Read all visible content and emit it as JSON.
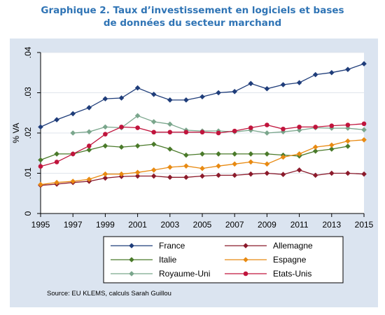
{
  "figure": {
    "title_line1": "Graphique 2. Taux d’investissement en logiciels et bases",
    "title_line2": "de données du secteur marchand",
    "source": "Source: EU KLEMS, calculs Sarah Guillou"
  },
  "chart_data": {
    "type": "line",
    "ylabel": "% VA",
    "xlabel": "",
    "xlim": [
      1995,
      2015
    ],
    "ylim": [
      0,
      0.04
    ],
    "x_ticks": [
      "1995",
      "1997",
      "1999",
      "2001",
      "2003",
      "2005",
      "2007",
      "2009",
      "2011",
      "2013",
      "2015"
    ],
    "y_ticks": [
      "0",
      ".01",
      ".02",
      ".03",
      ".04"
    ],
    "grid": true,
    "legend_position": "bottom",
    "x": [
      1995,
      1996,
      1997,
      1998,
      1999,
      2000,
      2001,
      2002,
      2003,
      2004,
      2005,
      2006,
      2007,
      2008,
      2009,
      2010,
      2011,
      2012,
      2013,
      2014,
      2015
    ],
    "series": [
      {
        "name": "France",
        "color": "#1f3d7a",
        "marker": "diamond",
        "values": [
          0.0215,
          0.0233,
          0.0248,
          0.0263,
          0.0285,
          0.0287,
          0.0312,
          0.0296,
          0.0282,
          0.0282,
          0.029,
          0.03,
          0.0303,
          0.0323,
          0.031,
          0.032,
          0.0325,
          0.0345,
          0.035,
          0.0358,
          0.0372
        ]
      },
      {
        "name": "Allemagne",
        "color": "#8b1a2b",
        "marker": "diamond",
        "values": [
          0.007,
          0.0073,
          0.0077,
          0.008,
          0.0088,
          0.0092,
          0.0093,
          0.0093,
          0.009,
          0.009,
          0.0093,
          0.0095,
          0.0095,
          0.0098,
          0.01,
          0.0097,
          0.0108,
          0.0095,
          0.01,
          0.01,
          0.0098
        ]
      },
      {
        "name": "Italie",
        "color": "#4a7a2a",
        "marker": "diamond",
        "values": [
          0.0133,
          0.0148,
          0.0148,
          0.0158,
          0.0168,
          0.0165,
          0.0168,
          0.0172,
          0.016,
          0.0145,
          0.0148,
          0.0148,
          0.0148,
          0.0148,
          0.0148,
          0.0145,
          0.0143,
          0.0155,
          0.016,
          0.0167,
          null
        ]
      },
      {
        "name": "Espagne",
        "color": "#e88a12",
        "marker": "diamond",
        "values": [
          0.0072,
          0.0077,
          0.008,
          0.0085,
          0.0098,
          0.0098,
          0.0102,
          0.0108,
          0.0115,
          0.0118,
          0.0112,
          0.0118,
          0.0123,
          0.0128,
          0.0123,
          0.014,
          0.0148,
          0.0165,
          0.017,
          0.018,
          0.0183
        ]
      },
      {
        "name": "Royaume-Uni",
        "color": "#7aa68c",
        "marker": "diamond",
        "values": [
          null,
          null,
          0.02,
          0.0203,
          0.0215,
          0.0213,
          0.0243,
          0.0228,
          0.0222,
          0.0207,
          0.0205,
          0.0205,
          0.0203,
          0.0207,
          0.02,
          0.0203,
          0.0207,
          0.0213,
          0.0212,
          0.0212,
          0.0208
        ]
      },
      {
        "name": "Etats-Unis",
        "color": "#c0143c",
        "marker": "circle",
        "values": [
          0.0117,
          0.0128,
          0.0148,
          0.0168,
          0.0197,
          0.0215,
          0.0213,
          0.0202,
          0.0202,
          0.0202,
          0.0202,
          0.02,
          0.0205,
          0.0213,
          0.022,
          0.021,
          0.0215,
          0.0215,
          0.0218,
          0.022,
          0.0223
        ]
      }
    ]
  }
}
